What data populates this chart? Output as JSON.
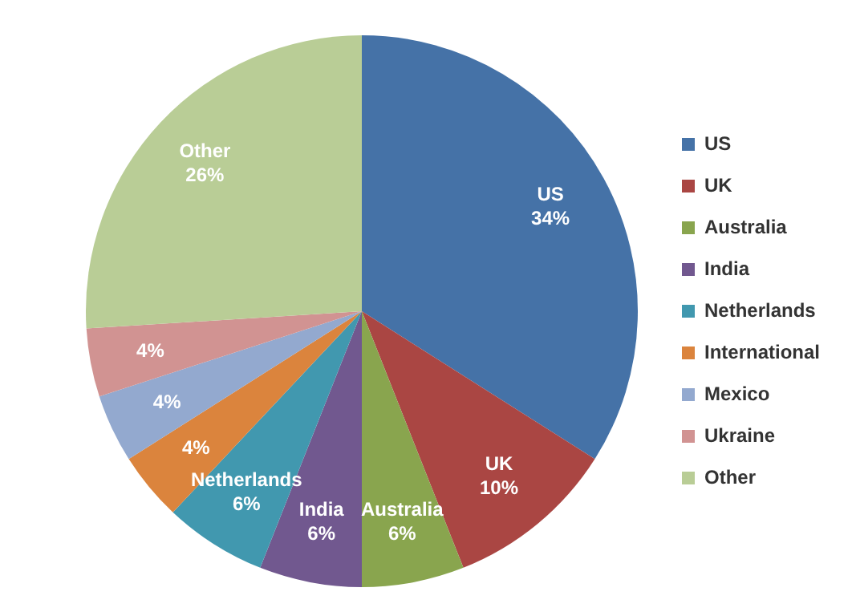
{
  "chart_data": {
    "type": "pie",
    "categories": [
      "US",
      "UK",
      "Australia",
      "India",
      "Netherlands",
      "International",
      "Mexico",
      "Ukraine",
      "Other"
    ],
    "values": [
      34,
      10,
      6,
      6,
      6,
      4,
      4,
      4,
      26
    ],
    "colors": [
      "#4572a7",
      "#aa4643",
      "#89a54e",
      "#71588f",
      "#4198af",
      "#db843d",
      "#93a9cf",
      "#d19392",
      "#b9cd96"
    ],
    "value_labels": [
      "US\n34%",
      "UK\n10%",
      "Australia\n6%",
      "India\n6%",
      "Netherlands\n6%",
      "4%",
      "4%",
      "4%",
      "Other\n26%"
    ],
    "legend": "right"
  }
}
